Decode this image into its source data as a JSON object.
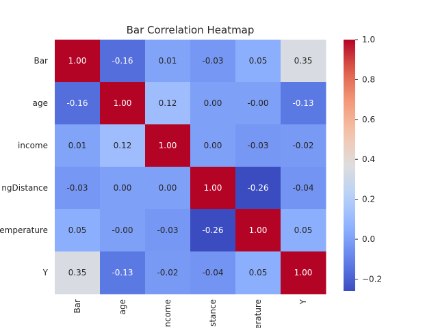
{
  "chart_data": {
    "type": "heatmap",
    "title": "Bar Correlation Heatmap",
    "x_labels": [
      "Bar",
      "age",
      "ncome",
      "stance",
      "erature",
      "Y"
    ],
    "y_labels": [
      "Bar",
      "age",
      "income",
      "ngDistance",
      "emperature",
      "Y"
    ],
    "values": [
      [
        1.0,
        -0.16,
        0.01,
        -0.03,
        0.05,
        0.35
      ],
      [
        -0.16,
        1.0,
        0.12,
        0.0,
        -0.0,
        -0.13
      ],
      [
        0.01,
        0.12,
        1.0,
        0.0,
        -0.03,
        -0.02
      ],
      [
        -0.03,
        0.0,
        0.0,
        1.0,
        -0.26,
        -0.04
      ],
      [
        0.05,
        -0.0,
        -0.03,
        -0.26,
        1.0,
        0.05
      ],
      [
        0.35,
        -0.13,
        -0.02,
        -0.04,
        0.05,
        1.0
      ]
    ],
    "cell_labels": [
      [
        "1.00",
        "-0.16",
        "0.01",
        "-0.03",
        "0.05",
        "0.35"
      ],
      [
        "-0.16",
        "1.00",
        "0.12",
        "0.00",
        "-0.00",
        "-0.13"
      ],
      [
        "0.01",
        "0.12",
        "1.00",
        "0.00",
        "-0.03",
        "-0.02"
      ],
      [
        "-0.03",
        "0.00",
        "0.00",
        "1.00",
        "-0.26",
        "-0.04"
      ],
      [
        "0.05",
        "-0.00",
        "-0.03",
        "-0.26",
        "1.00",
        "0.05"
      ],
      [
        "0.35",
        "-0.13",
        "-0.02",
        "-0.04",
        "0.05",
        "1.00"
      ]
    ],
    "colormap": "coolwarm",
    "vmin": -0.26,
    "vmax": 1.0,
    "colorbar_ticks": [
      -0.2,
      0.0,
      0.2,
      0.4,
      0.6,
      0.8,
      1.0
    ],
    "colorbar_tick_labels": [
      "−0.2",
      "0.0",
      "0.2",
      "0.4",
      "0.6",
      "0.8",
      "1.0"
    ],
    "colors": {
      "low": "#3b4cc0",
      "mid": "#dddddd",
      "high": "#b40426"
    }
  }
}
